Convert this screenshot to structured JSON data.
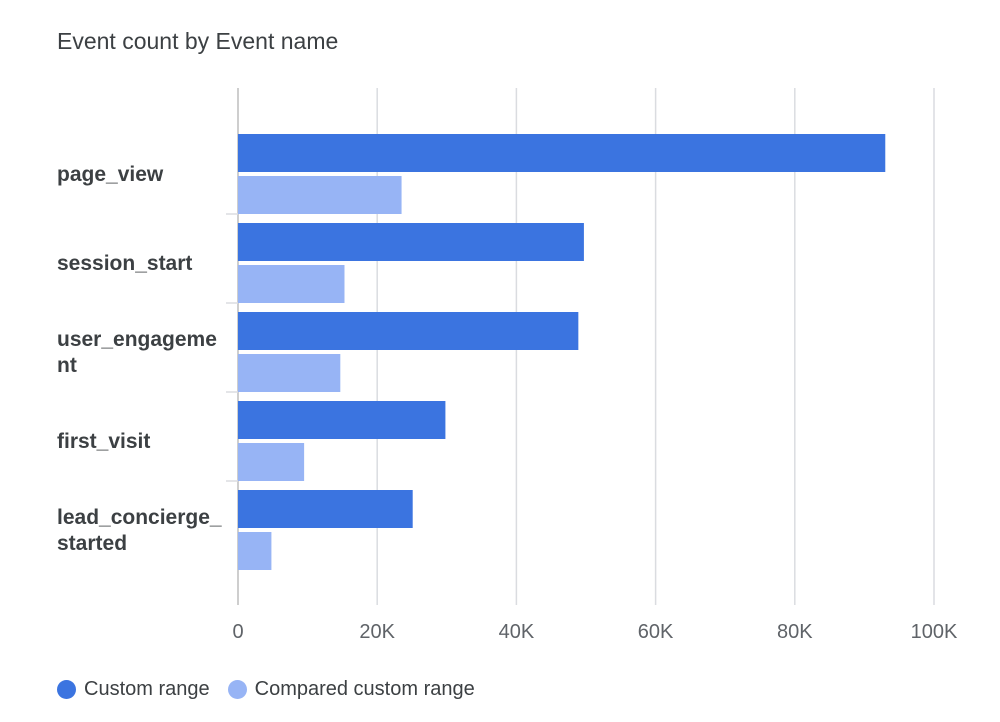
{
  "chart_data": {
    "type": "bar",
    "orientation": "horizontal",
    "title": "Event count by Event name",
    "categories": [
      "page_view",
      "session_start",
      "user_engagement",
      "first_visit",
      "lead_concierge_started"
    ],
    "category_display": [
      "page_view",
      "session_start",
      "user_engageme\nnt",
      "first_visit",
      "lead_concierge_\nstarted"
    ],
    "series": [
      {
        "name": "Custom range",
        "color": "#3b74e0",
        "values": [
          93000,
          49700,
          48900,
          29800,
          25100
        ]
      },
      {
        "name": "Compared custom range",
        "color": "#97b4f5",
        "values": [
          23500,
          15300,
          14700,
          9500,
          4800
        ]
      }
    ],
    "xlim": [
      0,
      100000
    ],
    "ticks": [
      0,
      20000,
      40000,
      60000,
      80000,
      100000
    ],
    "tick_labels": [
      "0",
      "20K",
      "40K",
      "60K",
      "80K",
      "100K"
    ],
    "grid": true,
    "legend_position": "bottom-left"
  }
}
